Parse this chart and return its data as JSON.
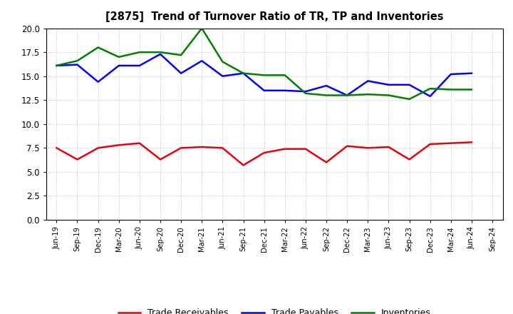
{
  "title": "[2875]  Trend of Turnover Ratio of TR, TP and Inventories",
  "x_labels": [
    "Jun-19",
    "Sep-19",
    "Dec-19",
    "Mar-20",
    "Jun-20",
    "Sep-20",
    "Dec-20",
    "Mar-21",
    "Jun-21",
    "Sep-21",
    "Dec-21",
    "Mar-22",
    "Jun-22",
    "Sep-22",
    "Dec-22",
    "Mar-23",
    "Jun-23",
    "Sep-23",
    "Dec-23",
    "Mar-24",
    "Jun-24",
    "Sep-24"
  ],
  "trade_receivables": [
    7.5,
    6.3,
    7.5,
    7.8,
    8.0,
    6.3,
    7.5,
    7.6,
    7.5,
    5.7,
    7.0,
    7.4,
    7.4,
    6.0,
    7.7,
    7.5,
    7.6,
    6.3,
    7.9,
    8.0,
    8.1,
    null
  ],
  "trade_payables": [
    16.1,
    16.2,
    14.4,
    16.1,
    16.1,
    17.3,
    15.3,
    16.6,
    15.0,
    15.3,
    13.5,
    13.5,
    13.4,
    14.0,
    13.0,
    14.5,
    14.1,
    14.1,
    12.9,
    15.2,
    15.3,
    null
  ],
  "inventories": [
    16.1,
    16.6,
    18.0,
    17.0,
    17.5,
    17.5,
    17.2,
    20.0,
    16.5,
    15.3,
    15.1,
    15.1,
    13.2,
    13.0,
    13.0,
    13.1,
    13.0,
    12.6,
    13.7,
    13.6,
    13.6,
    null
  ],
  "ylim": [
    0.0,
    20.0
  ],
  "yticks": [
    0.0,
    2.5,
    5.0,
    7.5,
    10.0,
    12.5,
    15.0,
    17.5,
    20.0
  ],
  "color_tr": "#e8000d",
  "color_tp": "#0000ff",
  "color_inv": "#008000",
  "legend_labels": [
    "Trade Receivables",
    "Trade Payables",
    "Inventories"
  ],
  "bg_color": "#ffffff",
  "grid_color": "#b0b0b0",
  "linewidth": 1.8
}
